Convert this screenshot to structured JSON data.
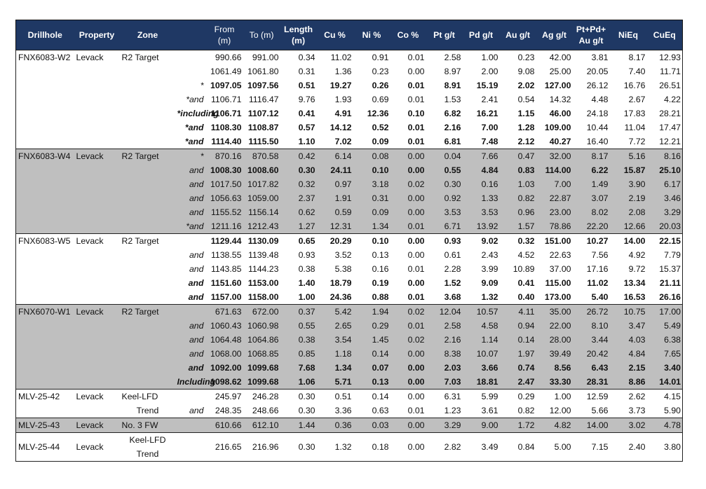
{
  "colors": {
    "header_bg": "#1f3864",
    "shaded_bg": "#bfbfbf"
  },
  "headers": [
    {
      "key": "drillhole",
      "label": "Drillhole"
    },
    {
      "key": "property",
      "label": "Property"
    },
    {
      "key": "zone",
      "label": "Zone"
    },
    {
      "key": "q",
      "label": ""
    },
    {
      "key": "from",
      "label": "From (m)"
    },
    {
      "key": "to",
      "label": "To (m)"
    },
    {
      "key": "len",
      "label": "Length (m)"
    },
    {
      "key": "cu",
      "label": "Cu %"
    },
    {
      "key": "ni",
      "label": "Ni %"
    },
    {
      "key": "co",
      "label": "Co %"
    },
    {
      "key": "pt",
      "label": "Pt g/t"
    },
    {
      "key": "pd",
      "label": "Pd g/t"
    },
    {
      "key": "au",
      "label": "Au g/t"
    },
    {
      "key": "ag",
      "label": "Ag g/t"
    },
    {
      "key": "ppa",
      "label": "Pt+Pd+ Au g/t"
    },
    {
      "key": "nieq",
      "label": "NiEq"
    },
    {
      "key": "cueq",
      "label": "CuEq"
    }
  ],
  "groups": [
    {
      "drillhole": "FNX6083-W2",
      "property": "Levack",
      "zone": "R2 Target",
      "shaded": false,
      "rows": [
        {
          "q": "",
          "from": "990.66",
          "to": "991.00",
          "len": "0.34",
          "cu": "11.02",
          "ni": "0.91",
          "co": "0.01",
          "pt": "2.58",
          "pd": "1.00",
          "au": "0.23",
          "ag": "42.00",
          "ppa": "3.81",
          "nieq": "8.17",
          "cueq": "12.93",
          "bold": "none",
          "qbold": false
        },
        {
          "q": "",
          "from": "1061.49",
          "to": "1061.80",
          "len": "0.31",
          "cu": "1.36",
          "ni": "0.23",
          "co": "0.00",
          "pt": "8.97",
          "pd": "2.00",
          "au": "9.08",
          "ag": "25.00",
          "ppa": "20.05",
          "nieq": "7.40",
          "cueq": "11.71",
          "bold": "none",
          "qbold": false
        },
        {
          "q": "*",
          "from": "1097.05",
          "to": "1097.56",
          "len": "0.51",
          "cu": "19.27",
          "ni": "0.26",
          "co": "0.01",
          "pt": "8.91",
          "pd": "15.19",
          "au": "2.02",
          "ag": "127.00",
          "ppa": "26.12",
          "nieq": "16.76",
          "cueq": "26.51",
          "bold": "to_ag",
          "qbold": false
        },
        {
          "q": "*and",
          "from": "1106.71",
          "to": "1116.47",
          "len": "9.76",
          "cu": "1.93",
          "ni": "0.69",
          "co": "0.01",
          "pt": "1.53",
          "pd": "2.41",
          "au": "0.54",
          "ag": "14.32",
          "ppa": "4.48",
          "nieq": "2.67",
          "cueq": "4.22",
          "bold": "none",
          "qbold": false
        },
        {
          "q": "*including",
          "from": "1106.71",
          "to": "1107.12",
          "len": "0.41",
          "cu": "4.91",
          "ni": "12.36",
          "co": "0.10",
          "pt": "6.82",
          "pd": "16.21",
          "au": "1.15",
          "ag": "46.00",
          "ppa": "24.18",
          "nieq": "17.83",
          "cueq": "28.21",
          "bold": "to_ag",
          "qbold": true
        },
        {
          "q": "*and",
          "from": "1108.30",
          "to": "1108.87",
          "len": "0.57",
          "cu": "14.12",
          "ni": "0.52",
          "co": "0.01",
          "pt": "2.16",
          "pd": "7.00",
          "au": "1.28",
          "ag": "109.00",
          "ppa": "10.44",
          "nieq": "11.04",
          "cueq": "17.47",
          "bold": "to_ag",
          "qbold": true
        },
        {
          "q": "*and",
          "from": "1114.40",
          "to": "1115.50",
          "len": "1.10",
          "cu": "7.02",
          "ni": "0.09",
          "co": "0.01",
          "pt": "6.81",
          "pd": "7.48",
          "au": "2.12",
          "ag": "40.27",
          "ppa": "16.40",
          "nieq": "7.72",
          "cueq": "12.21",
          "bold": "to_ag",
          "qbold": true
        }
      ]
    },
    {
      "drillhole": "FNX6083-W4",
      "property": "Levack",
      "zone": "R2 Target",
      "shaded": true,
      "rows": [
        {
          "q": "*",
          "from": "870.16",
          "to": "870.58",
          "len": "0.42",
          "cu": "6.14",
          "ni": "0.08",
          "co": "0.00",
          "pt": "0.04",
          "pd": "7.66",
          "au": "0.47",
          "ag": "32.00",
          "ppa": "8.17",
          "nieq": "5.16",
          "cueq": "8.16",
          "bold": "none",
          "qbold": false
        },
        {
          "q": "and",
          "from": "1008.30",
          "to": "1008.60",
          "len": "0.30",
          "cu": "24.11",
          "ni": "0.10",
          "co": "0.00",
          "pt": "0.55",
          "pd": "4.84",
          "au": "0.83",
          "ag": "114.00",
          "ppa": "6.22",
          "nieq": "15.87",
          "cueq": "25.10",
          "bold": "all",
          "qbold": false
        },
        {
          "q": "and",
          "from": "1017.50",
          "to": "1017.82",
          "len": "0.32",
          "cu": "0.97",
          "ni": "3.18",
          "co": "0.02",
          "pt": "0.30",
          "pd": "0.16",
          "au": "1.03",
          "ag": "7.00",
          "ppa": "1.49",
          "nieq": "3.90",
          "cueq": "6.17",
          "bold": "none",
          "qbold": false
        },
        {
          "q": "and",
          "from": "1056.63",
          "to": "1059.00",
          "len": "2.37",
          "cu": "1.91",
          "ni": "0.31",
          "co": "0.00",
          "pt": "0.92",
          "pd": "1.33",
          "au": "0.82",
          "ag": "22.87",
          "ppa": "3.07",
          "nieq": "2.19",
          "cueq": "3.46",
          "bold": "none",
          "qbold": false
        },
        {
          "q": "and",
          "from": "1155.52",
          "to": "1156.14",
          "len": "0.62",
          "cu": "0.59",
          "ni": "0.09",
          "co": "0.00",
          "pt": "3.53",
          "pd": "3.53",
          "au": "0.96",
          "ag": "23.00",
          "ppa": "8.02",
          "nieq": "2.08",
          "cueq": "3.29",
          "bold": "none",
          "qbold": false
        },
        {
          "q": "*and",
          "from": "1211.16",
          "to": "1212.43",
          "len": "1.27",
          "cu": "12.31",
          "ni": "1.34",
          "co": "0.01",
          "pt": "6.71",
          "pd": "13.92",
          "au": "1.57",
          "ag": "78.86",
          "ppa": "22.20",
          "nieq": "12.66",
          "cueq": "20.03",
          "bold": "none",
          "qbold": false
        }
      ]
    },
    {
      "drillhole": "FNX6083-W5",
      "property": "Levack",
      "zone": "R2 Target",
      "shaded": false,
      "rows": [
        {
          "q": "",
          "from": "1129.44",
          "to": "1130.09",
          "len": "0.65",
          "cu": "20.29",
          "ni": "0.10",
          "co": "0.00",
          "pt": "0.93",
          "pd": "9.02",
          "au": "0.32",
          "ag": "151.00",
          "ppa": "10.27",
          "nieq": "14.00",
          "cueq": "22.15",
          "bold": "all",
          "qbold": false
        },
        {
          "q": "and",
          "from": "1138.55",
          "to": "1139.48",
          "len": "0.93",
          "cu": "3.52",
          "ni": "0.13",
          "co": "0.00",
          "pt": "0.61",
          "pd": "2.43",
          "au": "4.52",
          "ag": "22.63",
          "ppa": "7.56",
          "nieq": "4.92",
          "cueq": "7.79",
          "bold": "none",
          "qbold": false
        },
        {
          "q": "and",
          "from": "1143.85",
          "to": "1144.23",
          "len": "0.38",
          "cu": "5.38",
          "ni": "0.16",
          "co": "0.01",
          "pt": "2.28",
          "pd": "3.99",
          "au": "10.89",
          "ag": "37.00",
          "ppa": "17.16",
          "nieq": "9.72",
          "cueq": "15.37",
          "bold": "none",
          "qbold": false
        },
        {
          "q": "and",
          "from": "1151.60",
          "to": "1153.00",
          "len": "1.40",
          "cu": "18.79",
          "ni": "0.19",
          "co": "0.00",
          "pt": "1.52",
          "pd": "9.09",
          "au": "0.41",
          "ag": "115.00",
          "ppa": "11.02",
          "nieq": "13.34",
          "cueq": "21.11",
          "bold": "all",
          "qbold": true
        },
        {
          "q": "and",
          "from": "1157.00",
          "to": "1158.00",
          "len": "1.00",
          "cu": "24.36",
          "ni": "0.88",
          "co": "0.01",
          "pt": "3.68",
          "pd": "1.32",
          "au": "0.40",
          "ag": "173.00",
          "ppa": "5.40",
          "nieq": "16.53",
          "cueq": "26.16",
          "bold": "all",
          "qbold": true
        }
      ]
    },
    {
      "drillhole": "FNX6070-W1",
      "property": "Levack",
      "zone": "R2 Target",
      "shaded": true,
      "rows": [
        {
          "q": "",
          "from": "671.63",
          "to": "672.00",
          "len": "0.37",
          "cu": "5.42",
          "ni": "1.94",
          "co": "0.02",
          "pt": "12.04",
          "pd": "10.57",
          "au": "4.11",
          "ag": "35.00",
          "ppa": "26.72",
          "nieq": "10.75",
          "cueq": "17.00",
          "bold": "none",
          "qbold": false
        },
        {
          "q": "and",
          "from": "1060.43",
          "to": "1060.98",
          "len": "0.55",
          "cu": "2.65",
          "ni": "0.29",
          "co": "0.01",
          "pt": "2.58",
          "pd": "4.58",
          "au": "0.94",
          "ag": "22.00",
          "ppa": "8.10",
          "nieq": "3.47",
          "cueq": "5.49",
          "bold": "none",
          "qbold": false
        },
        {
          "q": "and",
          "from": "1064.48",
          "to": "1064.86",
          "len": "0.38",
          "cu": "3.54",
          "ni": "1.45",
          "co": "0.02",
          "pt": "2.16",
          "pd": "1.14",
          "au": "0.14",
          "ag": "28.00",
          "ppa": "3.44",
          "nieq": "4.03",
          "cueq": "6.38",
          "bold": "none",
          "qbold": false
        },
        {
          "q": "and",
          "from": "1068.00",
          "to": "1068.85",
          "len": "0.85",
          "cu": "1.18",
          "ni": "0.14",
          "co": "0.00",
          "pt": "8.38",
          "pd": "10.07",
          "au": "1.97",
          "ag": "39.49",
          "ppa": "20.42",
          "nieq": "4.84",
          "cueq": "7.65",
          "bold": "none",
          "qbold": false
        },
        {
          "q": "and",
          "from": "1092.00",
          "to": "1099.68",
          "len": "7.68",
          "cu": "1.34",
          "ni": "0.07",
          "co": "0.00",
          "pt": "2.03",
          "pd": "3.66",
          "au": "0.74",
          "ag": "8.56",
          "ppa": "6.43",
          "nieq": "2.15",
          "cueq": "3.40",
          "bold": "all",
          "qbold": true
        },
        {
          "q": "Including",
          "from": "1098.62",
          "to": "1099.68",
          "len": "1.06",
          "cu": "5.71",
          "ni": "0.13",
          "co": "0.00",
          "pt": "7.03",
          "pd": "18.81",
          "au": "2.47",
          "ag": "33.30",
          "ppa": "28.31",
          "nieq": "8.86",
          "cueq": "14.01",
          "bold": "all",
          "qbold": true
        }
      ]
    },
    {
      "drillhole": "MLV-25-42",
      "property": "Levack",
      "zone": "Keel-LFD",
      "shaded": false,
      "rows": [
        {
          "q": "",
          "from": "245.97",
          "to": "246.28",
          "len": "0.30",
          "cu": "0.51",
          "ni": "0.14",
          "co": "0.00",
          "pt": "6.31",
          "pd": "5.99",
          "au": "0.29",
          "ag": "1.00",
          "ppa": "12.59",
          "nieq": "2.62",
          "cueq": "4.15",
          "bold": "none",
          "qbold": false
        },
        {
          "zone": "Trend",
          "q": "and",
          "from": "248.35",
          "to": "248.66",
          "len": "0.30",
          "cu": "3.36",
          "ni": "0.63",
          "co": "0.01",
          "pt": "1.23",
          "pd": "3.61",
          "au": "0.82",
          "ag": "12.00",
          "ppa": "5.66",
          "nieq": "3.73",
          "cueq": "5.90",
          "bold": "none",
          "qbold": false
        }
      ]
    },
    {
      "drillhole": "MLV-25-43",
      "property": "Levack",
      "zone": "No. 3 FW",
      "shaded": true,
      "rows": [
        {
          "q": "",
          "from": "610.66",
          "to": "612.10",
          "len": "1.44",
          "cu": "0.36",
          "ni": "0.03",
          "co": "0.00",
          "pt": "3.29",
          "pd": "9.00",
          "au": "1.72",
          "ag": "4.82",
          "ppa": "14.00",
          "nieq": "3.02",
          "cueq": "4.78",
          "bold": "none",
          "qbold": false
        }
      ]
    },
    {
      "drillhole": "MLV-25-44",
      "property": "Levack",
      "zone": "Keel-LFD Trend",
      "shaded": false,
      "tall": true,
      "rows": [
        {
          "q": "",
          "from": "216.65",
          "to": "216.96",
          "len": "0.30",
          "cu": "1.32",
          "ni": "0.18",
          "co": "0.00",
          "pt": "2.82",
          "pd": "3.49",
          "au": "0.84",
          "ag": "5.00",
          "ppa": "7.15",
          "nieq": "2.40",
          "cueq": "3.80",
          "bold": "none",
          "qbold": false
        }
      ]
    }
  ]
}
